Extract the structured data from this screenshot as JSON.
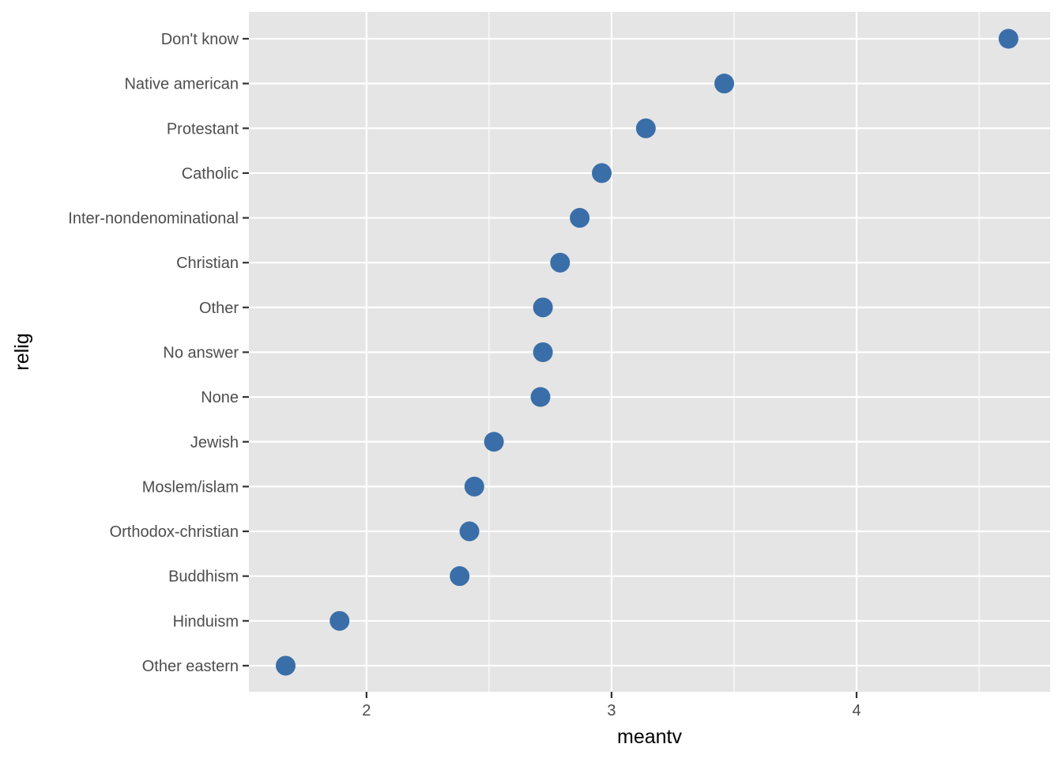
{
  "chart_data": {
    "type": "scatter",
    "title": "",
    "xlabel": "meantv",
    "ylabel": "relig",
    "x_ticks": [
      2,
      3,
      4
    ],
    "x_tick_labels": [
      "2",
      "3",
      "4"
    ],
    "x_minor": [
      2.5,
      3.5,
      4.5
    ],
    "xlim": [
      1.52,
      4.79
    ],
    "grid": true,
    "legend": "none",
    "colors": {
      "point": "#3a6ea8",
      "panel": "#e5e5e5",
      "grid": "#ffffff",
      "tick_label": "#4d4d4d"
    },
    "categories": [
      "Don't know",
      "Native american",
      "Protestant",
      "Catholic",
      "Inter-nondenominational",
      "Christian",
      "Other",
      "No answer",
      "None",
      "Jewish",
      "Moslem/islam",
      "Orthodox-christian",
      "Buddhism",
      "Hinduism",
      "Other eastern"
    ],
    "values": [
      4.62,
      3.46,
      3.14,
      2.96,
      2.87,
      2.79,
      2.72,
      2.72,
      2.71,
      2.52,
      2.44,
      2.42,
      2.38,
      1.89,
      1.67
    ]
  }
}
